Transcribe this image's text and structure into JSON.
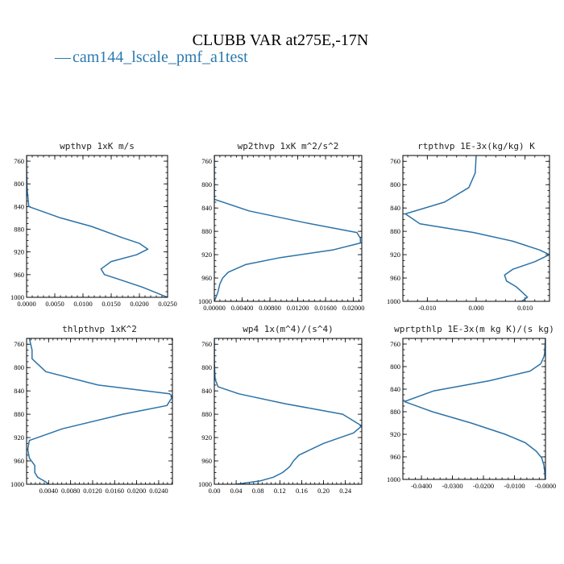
{
  "header": {
    "title": "CLUBB VAR at275E,-17N",
    "legend_symbol": "—",
    "legend_label": "cam144_lscale_pmf_a1test",
    "series_color": "#2a72a8"
  },
  "chart_data": [
    {
      "type": "line",
      "title": "wpthvp  1xK m/s",
      "xlim": [
        0,
        0.025
      ],
      "ylim": [
        1000,
        750
      ],
      "xticks": [
        0,
        0.005,
        0.01,
        0.015,
        0.02,
        0.025
      ],
      "xtick_labels": [
        "0.0000",
        "0.0050",
        "0.0100",
        "0.0150",
        "0.0200",
        "0.0250"
      ],
      "yticks": [
        760,
        800,
        840,
        880,
        920,
        960,
        1000
      ],
      "ytick_labels": [
        "760",
        "800",
        "840",
        "880",
        "920",
        "960",
        "1000"
      ],
      "series": [
        {
          "x": [
            0.0,
            0.0,
            0.0001,
            0.0004,
            0.006,
            0.0115,
            0.017,
            0.02,
            0.0215,
            0.0195,
            0.015,
            0.0132,
            0.0138,
            0.016,
            0.0205,
            0.025
          ],
          "y": [
            750,
            780,
            810,
            840,
            860,
            875,
            895,
            905,
            915,
            925,
            937,
            950,
            960,
            967,
            982,
            1000
          ]
        }
      ]
    },
    {
      "type": "line",
      "title": "wp2thvp  1xK m^2/s^2",
      "xlim": [
        0,
        0.0212
      ],
      "ylim": [
        1000,
        750
      ],
      "xticks": [
        0,
        0.004,
        0.008,
        0.012,
        0.016,
        0.02
      ],
      "xtick_labels": [
        "0.00000",
        "0.00400",
        "0.00800",
        "0.01200",
        "0.01600",
        "0.02000"
      ],
      "yticks": [
        760,
        800,
        840,
        880,
        920,
        960,
        1000
      ],
      "ytick_labels": [
        "760",
        "800",
        "840",
        "880",
        "920",
        "960",
        "1000"
      ],
      "series": [
        {
          "x": [
            0.0,
            0.0,
            0.0,
            0.005,
            0.013,
            0.0205,
            0.021,
            0.021,
            0.017,
            0.0095,
            0.0045,
            0.002,
            0.0012,
            0.0008,
            0.0005,
            0.0
          ],
          "y": [
            750,
            790,
            825,
            845,
            865,
            882,
            892,
            900,
            912,
            925,
            937,
            950,
            960,
            970,
            985,
            1000
          ]
        }
      ]
    },
    {
      "type": "line",
      "title": "rtpthvp  1E-3x(kg/kg) K",
      "xlim": [
        -0.015,
        0.015
      ],
      "ylim": [
        1000,
        750
      ],
      "xticks": [
        -0.01,
        0,
        0.01
      ],
      "xtick_labels": [
        "-0.010",
        "0.000",
        "0.010"
      ],
      "yticks": [
        760,
        800,
        840,
        880,
        920,
        960,
        1000
      ],
      "ytick_labels": [
        "760",
        "800",
        "840",
        "880",
        "920",
        "960",
        "1000"
      ],
      "series": [
        {
          "x": [
            0.0,
            -0.0002,
            -0.0015,
            -0.0065,
            -0.0145,
            -0.0115,
            -0.0005,
            0.0075,
            0.013,
            0.015,
            0.012,
            0.0075,
            0.0058,
            0.0062,
            0.0082,
            0.0095,
            0.0105,
            0.0093,
            0.0085
          ],
          "y": [
            750,
            780,
            805,
            830,
            850,
            867,
            882,
            897,
            912,
            920,
            932,
            945,
            955,
            965,
            975,
            985,
            993,
            1000,
            1000
          ]
        }
      ]
    },
    {
      "type": "line",
      "title": "thlpthvp  1xK^2",
      "xlim": [
        0,
        0.0265
      ],
      "ylim": [
        1000,
        750
      ],
      "xticks": [
        0.004,
        0.008,
        0.012,
        0.016,
        0.02,
        0.024
      ],
      "xtick_labels": [
        "0.0040",
        "0.0080",
        "0.0120",
        "0.0160",
        "0.0200",
        "0.0240"
      ],
      "yticks": [
        760,
        800,
        840,
        880,
        920,
        960,
        1000
      ],
      "ytick_labels": [
        "760",
        "800",
        "840",
        "880",
        "920",
        "960",
        "1000"
      ],
      "series": [
        {
          "x": [
            0.0005,
            0.001,
            0.001,
            0.0035,
            0.013,
            0.026,
            0.0265,
            0.0255,
            0.0175,
            0.0065,
            0.0005,
            0.0002,
            0.0005,
            0.0015,
            0.0015,
            0.002,
            0.0035,
            0.004
          ],
          "y": [
            750,
            770,
            785,
            807,
            830,
            845,
            850,
            865,
            880,
            905,
            925,
            940,
            955,
            968,
            980,
            988,
            996,
            1000
          ]
        }
      ]
    },
    {
      "type": "line",
      "title": "wp4  1x(m^4)/(s^4)",
      "xlim": [
        0,
        0.27
      ],
      "ylim": [
        1000,
        750
      ],
      "xticks": [
        0,
        0.04,
        0.08,
        0.12,
        0.16,
        0.2,
        0.24
      ],
      "xtick_labels": [
        "0.00",
        "0.04",
        "0.08",
        "0.12",
        "0.16",
        "0.20",
        "0.24"
      ],
      "yticks": [
        760,
        800,
        840,
        880,
        920,
        960,
        1000
      ],
      "ytick_labels": [
        "760",
        "800",
        "840",
        "880",
        "920",
        "960",
        "1000"
      ],
      "series": [
        {
          "x": [
            0.0,
            0.0,
            0.0015,
            0.007,
            0.045,
            0.13,
            0.235,
            0.27,
            0.255,
            0.2,
            0.155,
            0.145,
            0.138,
            0.125,
            0.108,
            0.085,
            0.055,
            0.04
          ],
          "y": [
            750,
            790,
            820,
            833,
            845,
            862,
            880,
            900,
            912,
            930,
            950,
            960,
            970,
            980,
            988,
            994,
            998,
            1000
          ]
        }
      ]
    },
    {
      "type": "line",
      "title": "wprtpthlp  1E-3x(m kg K)/(s kg)",
      "xlim": [
        -0.046,
        0
      ],
      "ylim": [
        1000,
        750
      ],
      "xticks": [
        -0.04,
        -0.03,
        -0.02,
        -0.01,
        0
      ],
      "xtick_labels": [
        "-0.0400",
        "-0.0300",
        "-0.0200",
        "-0.0100",
        "-0.0000"
      ],
      "yticks": [
        760,
        800,
        840,
        880,
        920,
        960,
        1000
      ],
      "ytick_labels": [
        "760",
        "800",
        "840",
        "880",
        "920",
        "960",
        "1000"
      ],
      "series": [
        {
          "x": [
            0.0,
            -0.0003,
            -0.0015,
            -0.005,
            -0.018,
            -0.036,
            -0.0455,
            -0.0365,
            -0.024,
            -0.013,
            -0.0065,
            -0.003,
            -0.0012,
            -0.0005,
            -0.0002,
            -0.0001
          ],
          "y": [
            750,
            780,
            795,
            808,
            825,
            843,
            862,
            880,
            900,
            920,
            935,
            950,
            962,
            975,
            988,
            1000
          ]
        }
      ]
    }
  ]
}
